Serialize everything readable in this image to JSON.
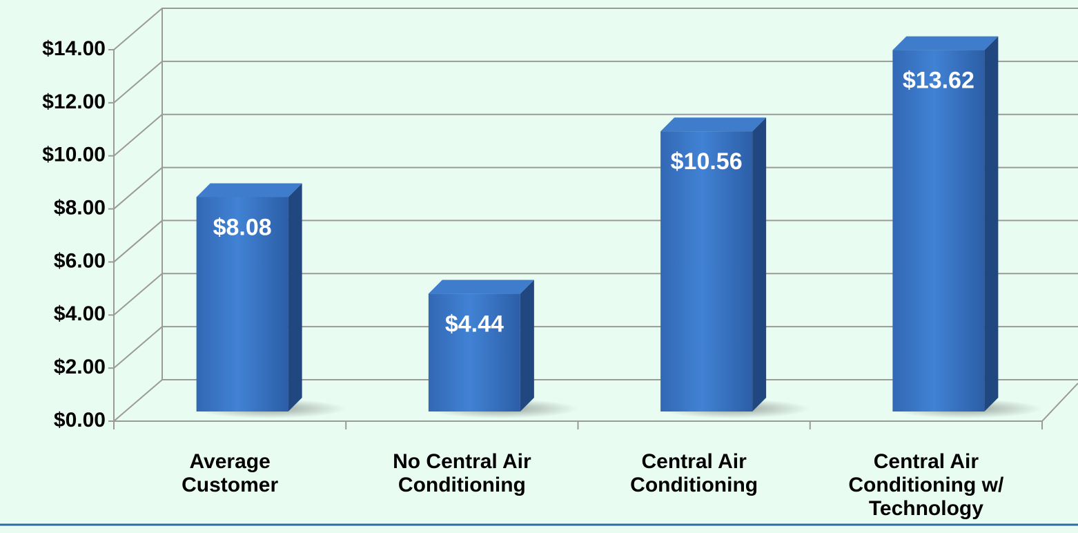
{
  "chart_data": {
    "type": "bar3d",
    "categories": [
      "Average Customer",
      "No Central Air Conditioning",
      "Central Air Conditioning",
      "Central Air Conditioning w/ Technology"
    ],
    "values": [
      8.08,
      4.44,
      10.56,
      13.62
    ],
    "value_labels": [
      "$8.08",
      "$4.44",
      "$10.56",
      "$13.62"
    ],
    "color": "#3a78c8",
    "ylim": [
      0,
      14
    ],
    "yticks": [
      {
        "value": 0,
        "label": "$0.00"
      },
      {
        "value": 2,
        "label": "$2.00"
      },
      {
        "value": 4,
        "label": "$4.00"
      },
      {
        "value": 6,
        "label": "$6.00"
      },
      {
        "value": 8,
        "label": "$8.00"
      },
      {
        "value": 10,
        "label": "$10.00"
      },
      {
        "value": 12,
        "label": "$12.00"
      },
      {
        "value": 14,
        "label": "$14.00"
      }
    ],
    "grid": true
  }
}
